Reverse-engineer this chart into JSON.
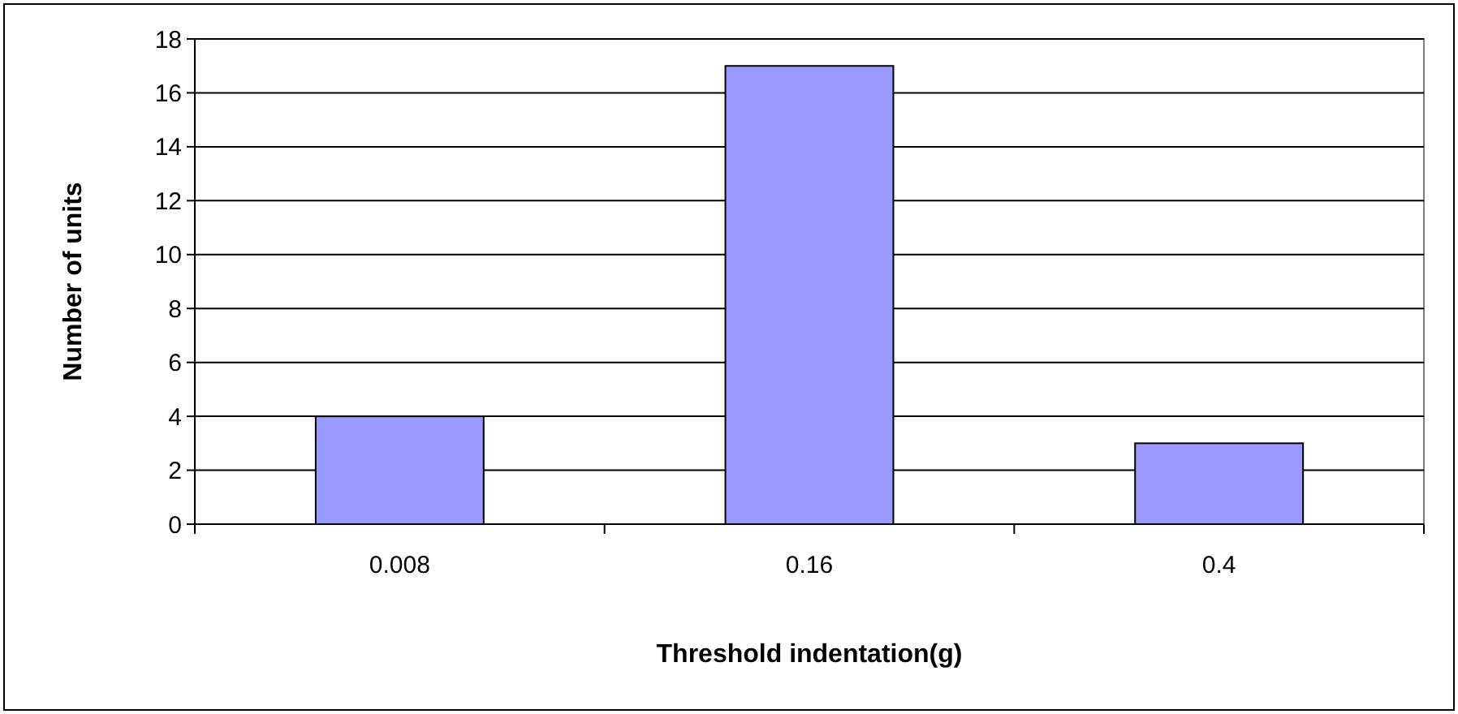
{
  "chart_data": {
    "type": "bar",
    "xlabel": "Threshold indentation(g)",
    "ylabel": "Number of units",
    "categories": [
      "0.008",
      "0.16",
      "0.4"
    ],
    "values": [
      4,
      17,
      3
    ],
    "color": "#9999ff",
    "ylim": [
      0,
      18
    ],
    "yticks": [
      0,
      2,
      4,
      6,
      8,
      10,
      12,
      14,
      16,
      18
    ],
    "grid": "y"
  }
}
